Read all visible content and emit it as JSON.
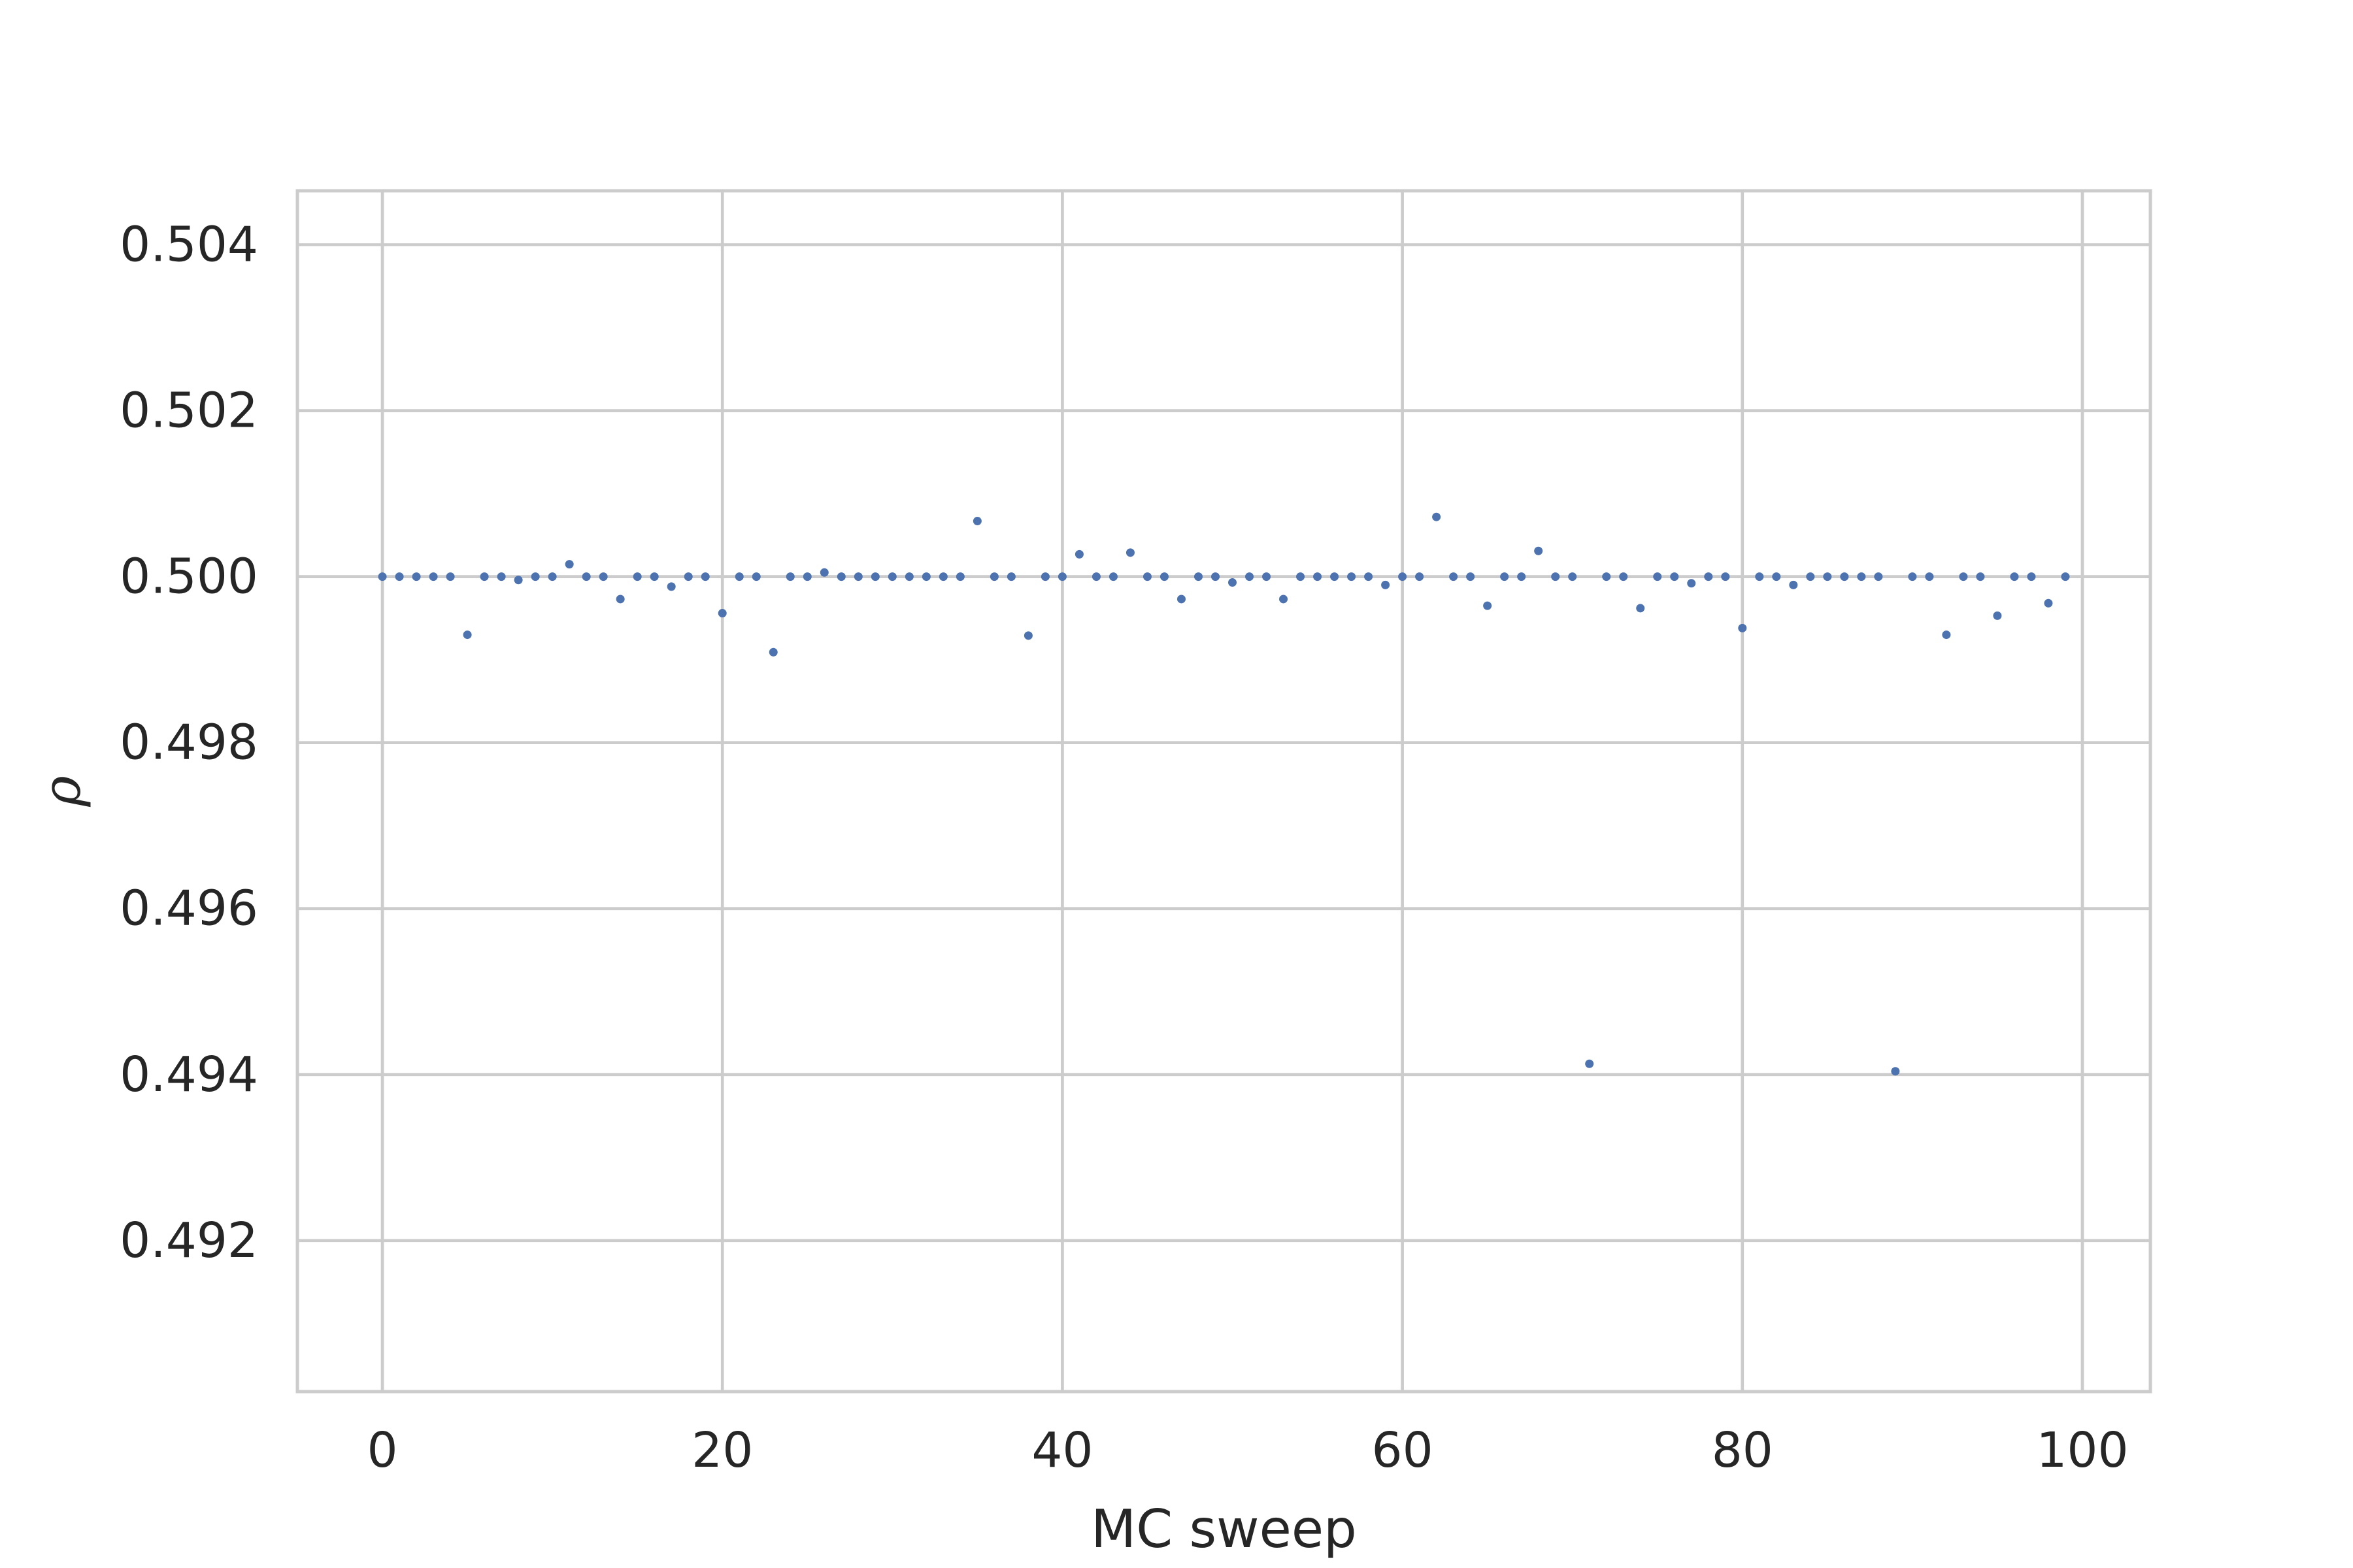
{
  "chart_data": {
    "type": "scatter",
    "title": "",
    "xlabel": "MC sweep",
    "ylabel": "ρ",
    "xlim": [
      -5,
      104
    ],
    "ylim": [
      0.49018,
      0.50465
    ],
    "xticks": [
      0,
      20,
      40,
      60,
      80,
      100
    ],
    "yticks": [
      0.492,
      0.494,
      0.496,
      0.498,
      0.5,
      0.502,
      0.504
    ],
    "xtick_labels": [
      "0",
      "20",
      "40",
      "60",
      "80",
      "100"
    ],
    "ytick_labels": [
      "0.492",
      "0.494",
      "0.496",
      "0.498",
      "0.500",
      "0.502",
      "0.504"
    ],
    "grid": true,
    "legend": "none",
    "point_color": "#4c72b0",
    "series": [
      {
        "x": [
          0,
          1,
          2,
          3,
          4,
          5,
          6,
          7,
          8,
          9,
          10,
          11,
          12,
          13,
          14,
          15,
          16,
          17,
          18,
          19,
          20,
          21,
          22,
          23,
          24,
          25,
          26,
          27,
          28,
          29,
          30,
          31,
          32,
          33,
          34,
          35,
          36,
          37,
          38,
          39,
          40,
          41,
          42,
          43,
          44,
          45,
          46,
          47,
          48,
          49,
          50,
          51,
          52,
          53,
          54,
          55,
          56,
          57,
          58,
          59,
          60,
          61,
          62,
          63,
          64,
          65,
          66,
          67,
          68,
          69,
          70,
          71,
          72,
          73,
          74,
          75,
          76,
          77,
          78,
          79,
          80,
          81,
          82,
          83,
          84,
          85,
          86,
          87,
          88,
          89,
          90,
          91,
          92,
          93,
          94,
          95,
          96,
          97,
          98,
          99
        ],
        "y": [
          0.5,
          0.5,
          0.5,
          0.5,
          0.5,
          0.4993,
          0.5,
          0.5,
          0.49996,
          0.5,
          0.5,
          0.50015,
          0.5,
          0.5,
          0.49973,
          0.5,
          0.5,
          0.49988,
          0.5,
          0.5,
          0.49956,
          0.5,
          0.5,
          0.49909,
          0.5,
          0.5,
          0.50005,
          0.5,
          0.5,
          0.5,
          0.5,
          0.5,
          0.5,
          0.5,
          0.5,
          0.50067,
          0.5,
          0.5,
          0.49929,
          0.5,
          0.5,
          0.50027,
          0.5,
          0.5,
          0.50029,
          0.5,
          0.5,
          0.49973,
          0.5,
          0.5,
          0.49993,
          0.5,
          0.5,
          0.49973,
          0.5,
          0.5,
          0.5,
          0.5,
          0.5,
          0.4999,
          0.5,
          0.5,
          0.50072,
          0.5,
          0.5,
          0.49965,
          0.5,
          0.5,
          0.50031,
          0.5,
          0.5,
          0.49413,
          0.5,
          0.5,
          0.49962,
          0.5,
          0.5,
          0.49992,
          0.5,
          0.5,
          0.49938,
          0.5,
          0.5,
          0.4999,
          0.5,
          0.5,
          0.5,
          0.5,
          0.5,
          0.49404,
          0.5,
          0.5,
          0.4993,
          0.5,
          0.5,
          0.49953,
          0.5,
          0.5,
          0.49968,
          0.5
        ]
      }
    ]
  }
}
